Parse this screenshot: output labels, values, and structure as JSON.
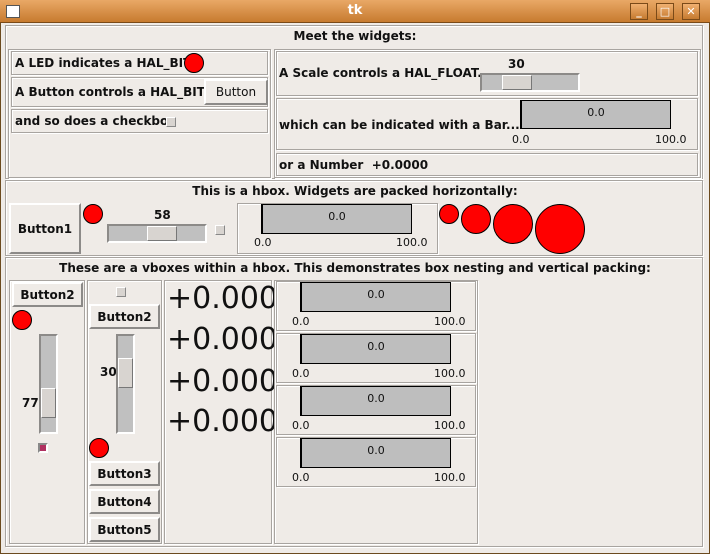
{
  "window": {
    "title": "tk",
    "buttons": [
      "minimize",
      "maximize",
      "close"
    ]
  },
  "colors": {
    "led_on": "#ff0000",
    "title_bar": "#d08a44",
    "checkbox_checked": "#b03060"
  },
  "top": {
    "heading": "Meet the widgets:",
    "led_label": "A LED indicates a HAL_BIT:",
    "button_label": "A Button controls a HAL_BIT...",
    "button_text": "Button",
    "checkbox_label": "and so does a checkbox",
    "scale_label": "A Scale controls a HAL_FLOAT...",
    "scale_value": "30",
    "bar_label": "which can be indicated with a Bar...",
    "bar_value": "0.0",
    "bar_min": "0.0",
    "bar_max": "100.0",
    "number_label": "or a Number",
    "number_value": "+0.0000"
  },
  "hbox": {
    "heading": "This is a hbox. Widgets are packed horizontally:",
    "button": "Button1",
    "scale_value": "58",
    "bar_value": "0.0",
    "bar_min": "0.0",
    "bar_max": "100.0"
  },
  "vbox": {
    "heading": "These are a vboxes within a hbox. This demonstrates box nesting and vertical packing:",
    "col1": {
      "button": "Button2",
      "scale_value": "77",
      "checkbox_checked": true
    },
    "col2": {
      "button": "Button2",
      "scale_value": "30",
      "buttons": [
        "Button3",
        "Button4",
        "Button5"
      ]
    },
    "numbers": [
      "+0.000",
      "+0.000",
      "+0.000",
      "+0.000"
    ],
    "bars": [
      {
        "value": "0.0",
        "min": "0.0",
        "max": "100.0"
      },
      {
        "value": "0.0",
        "min": "0.0",
        "max": "100.0"
      },
      {
        "value": "0.0",
        "min": "0.0",
        "max": "100.0"
      },
      {
        "value": "0.0",
        "min": "0.0",
        "max": "100.0"
      }
    ]
  }
}
